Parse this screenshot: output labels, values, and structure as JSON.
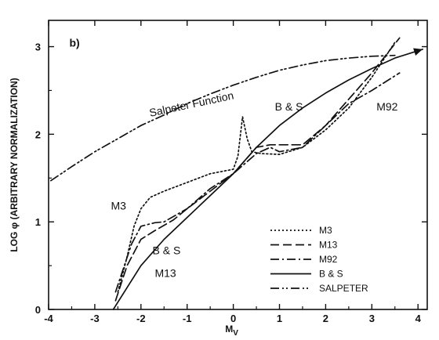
{
  "chart_data": {
    "type": "line",
    "panel_label": "b)",
    "xlabel": "M",
    "xlabel_sub": "V",
    "ylabel": "LOG φ (ARBITRARY NORMALIZATION)",
    "xlim": [
      -4,
      4.2
    ],
    "ylim": [
      0,
      3.3
    ],
    "x_ticks": [
      -4,
      -3,
      -2,
      -1,
      0,
      1,
      2,
      3,
      4
    ],
    "x_tick_labels": [
      "-4",
      "-3",
      "-2",
      "-1",
      "0",
      "1",
      "2",
      "3",
      "4"
    ],
    "y_ticks": [
      0,
      1,
      2,
      3
    ],
    "y_tick_labels": [
      "0",
      "1",
      "2",
      "3"
    ],
    "grid": false,
    "legend_position": "bottom-right",
    "series": [
      {
        "name": "M3",
        "dash": "2,3",
        "x": [
          -2.5,
          -2.3,
          -2.15,
          -2.0,
          -1.8,
          -1.5,
          -1.0,
          -0.5,
          0.0,
          0.1,
          0.2,
          0.3,
          0.4,
          0.6,
          1.0,
          1.5,
          2.0,
          2.5,
          3.0,
          3.5
        ],
        "y": [
          0.2,
          0.6,
          0.95,
          1.15,
          1.28,
          1.35,
          1.45,
          1.55,
          1.6,
          1.75,
          2.2,
          1.95,
          1.8,
          1.78,
          1.77,
          1.85,
          2.05,
          2.3,
          2.65,
          3.05
        ]
      },
      {
        "name": "M13",
        "dash": "11,5",
        "x": [
          -2.55,
          -2.3,
          -2.0,
          -1.7,
          -1.3,
          -1.0,
          -0.5,
          0.0,
          0.5,
          0.8,
          1.0,
          1.5,
          2.0,
          2.5,
          3.0,
          3.6
        ],
        "y": [
          0.1,
          0.5,
          0.8,
          0.9,
          1.02,
          1.15,
          1.35,
          1.55,
          1.85,
          1.88,
          1.88,
          1.88,
          2.1,
          2.4,
          2.7,
          3.1
        ]
      },
      {
        "name": "M92",
        "dash": "11,4,2,4",
        "x": [
          -2.55,
          -2.2,
          -2.0,
          -1.7,
          -1.5,
          -1.0,
          -0.5,
          0.0,
          0.5,
          0.8,
          1.0,
          1.5,
          2.0,
          2.5,
          3.0,
          3.6
        ],
        "y": [
          0.2,
          0.75,
          0.95,
          0.99,
          1.0,
          1.15,
          1.38,
          1.55,
          1.78,
          1.85,
          1.8,
          1.85,
          2.1,
          2.35,
          2.5,
          2.7
        ]
      },
      {
        "name": "B & S",
        "dash": "",
        "x": [
          -2.6,
          -2.0,
          -1.5,
          -1.0,
          -0.5,
          0.0,
          0.5,
          1.0,
          1.5,
          2.0,
          2.5,
          3.0,
          3.5,
          4.1
        ],
        "y": [
          0.0,
          0.5,
          0.8,
          1.05,
          1.3,
          1.55,
          1.85,
          2.1,
          2.3,
          2.47,
          2.62,
          2.75,
          2.87,
          2.97
        ]
      },
      {
        "name": "SALPETER",
        "dash": "11,4,2,3,2,4",
        "x": [
          -3.95,
          -3.5,
          -3.0,
          -2.5,
          -2.0,
          -1.5,
          -1.0,
          -0.5,
          0.0,
          0.5,
          1.0,
          1.5,
          2.0,
          2.5,
          3.0,
          3.5
        ],
        "y": [
          1.47,
          1.63,
          1.8,
          1.95,
          2.1,
          2.22,
          2.35,
          2.46,
          2.56,
          2.65,
          2.73,
          2.79,
          2.84,
          2.87,
          2.89,
          2.9
        ]
      }
    ],
    "annotations": [
      {
        "text": "Salpeter  Function",
        "x": -1.8,
        "y": 2.2,
        "rotate": -12
      },
      {
        "text": "B & S",
        "x": 0.9,
        "y": 2.27,
        "rotate": 0
      },
      {
        "text": "M92",
        "x": 3.1,
        "y": 2.27,
        "rotate": 0
      },
      {
        "text": "M3",
        "x": -2.65,
        "y": 1.14,
        "rotate": 0
      },
      {
        "text": "B & S",
        "x": -1.75,
        "y": 0.63,
        "rotate": 0
      },
      {
        "text": "M13",
        "x": -1.7,
        "y": 0.37,
        "rotate": 0
      }
    ],
    "legend": [
      {
        "label": "M3",
        "dash": "2,3"
      },
      {
        "label": "M13",
        "dash": "11,5"
      },
      {
        "label": "M92",
        "dash": "11,4,2,4"
      },
      {
        "label": "B & S",
        "dash": ""
      },
      {
        "label": "SALPETER",
        "dash": "11,4,2,3,2,4"
      }
    ]
  }
}
